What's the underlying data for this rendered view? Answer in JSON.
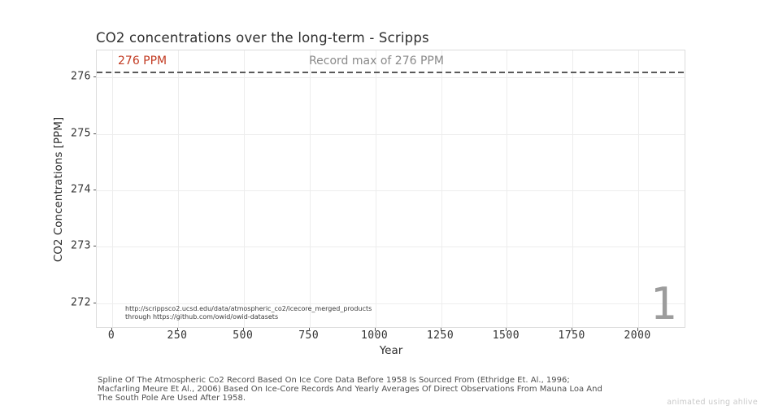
{
  "title": "CO2 concentrations over the long-term - Scripps",
  "annotations": {
    "current_value_label": "276 PPM",
    "record_max_label": "Record max of 276 PPM"
  },
  "frame_counter": "1",
  "source_note_lines": [
    "http://scrippsco2.ucsd.edu/data/atmospheric_co2/icecore_merged_products",
    "through https://github.com/owid/owid-datasets"
  ],
  "caption_lines": [
    "Spline Of The Atmospheric Co2 Record Based On Ice Core Data Before 1958 Is Sourced From (Ethridge Et. Al., 1996;",
    "Macfarling Meure Et Al., 2006) Based On Ice-Core Records And Yearly Averages Of Direct Observations From Mauna Loa And",
    "The South Pole Are Used After 1958."
  ],
  "watermark": "animated using ahlive",
  "colors": {
    "accent_red": "#c23b22",
    "record_gray": "#8a8a8a",
    "dashed_line": "#5a5a5a",
    "gridline": "#ededed",
    "spine": "#dcdcdc",
    "frame_counter": "#9c9c9c",
    "watermark": "#c9c9c9"
  },
  "chart_data": {
    "type": "line",
    "title": "CO2 concentrations over the long-term - Scripps",
    "xlabel": "Year",
    "ylabel": "CO2 Concentrations [PPM]",
    "xlim": [
      -59,
      2182
    ],
    "ylim": [
      271.55,
      276.48
    ],
    "x_ticks": [
      0,
      250,
      500,
      750,
      1000,
      1250,
      1500,
      1750,
      2000
    ],
    "y_ticks": [
      272,
      273,
      274,
      275,
      276
    ],
    "grid": true,
    "legend": "none",
    "record_max_line": {
      "value": 276.09,
      "style": "dashed",
      "label": "Record max of 276 PPM"
    },
    "series": [
      {
        "name": "CO2 concentrations",
        "x": [
          1
        ],
        "y": [
          276.09
        ],
        "point_label": "276 PPM"
      }
    ]
  }
}
